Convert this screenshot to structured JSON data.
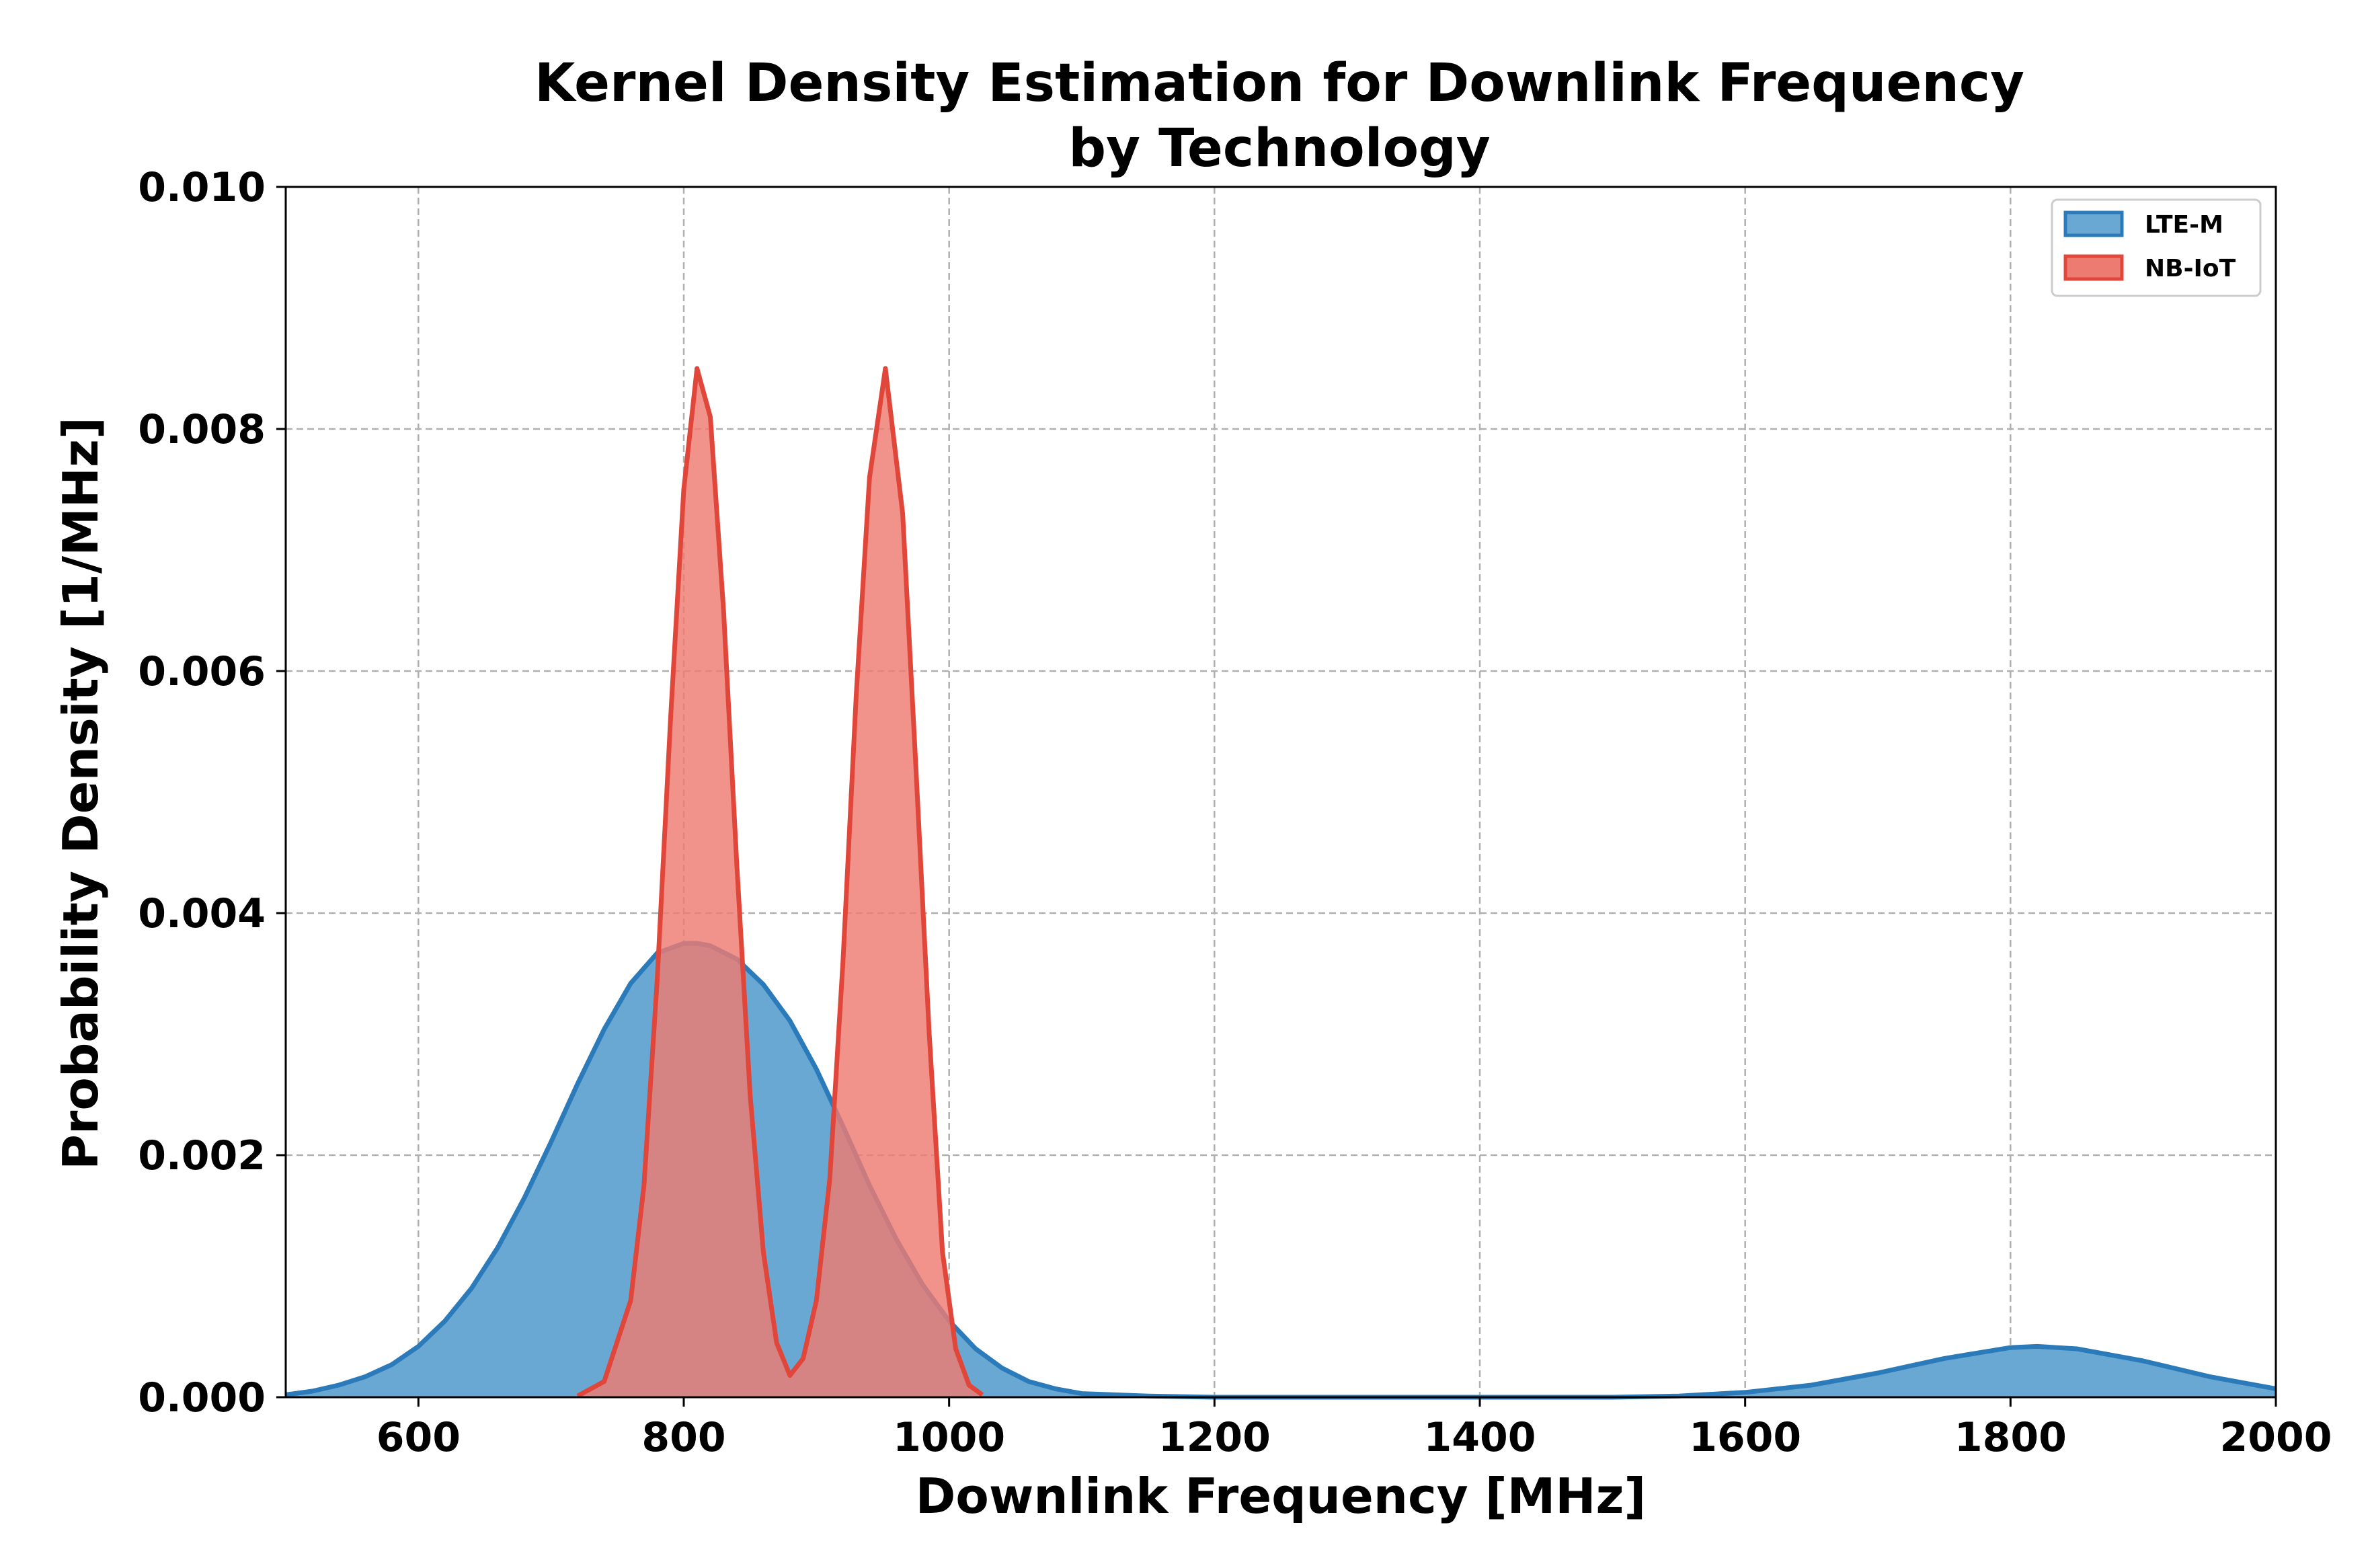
{
  "chart_data": {
    "type": "area",
    "title_line1": "Kernel Density Estimation for Downlink Frequency",
    "title_line2": "by Technology",
    "xlabel": "Downlink Frequency [MHz]",
    "ylabel": "Probability Density [1/MHz]",
    "xlim": [
      500,
      2000
    ],
    "ylim": [
      0,
      0.01
    ],
    "xticks": [
      600,
      800,
      1000,
      1200,
      1400,
      1600,
      1800,
      2000
    ],
    "xtick_labels": [
      "600",
      "800",
      "1000",
      "1200",
      "1400",
      "1600",
      "1800",
      "2000"
    ],
    "yticks": [
      0,
      0.002,
      0.004,
      0.006,
      0.008,
      0.01
    ],
    "ytick_labels": [
      "0.000",
      "0.002",
      "0.004",
      "0.006",
      "0.008",
      "0.010"
    ],
    "grid": true,
    "legend_position": "top-right",
    "series": [
      {
        "name": "LTE-M",
        "fill_color": "#6aa8d4",
        "line_color": "#2b7bba",
        "x": [
          500,
          520,
          540,
          560,
          580,
          600,
          620,
          640,
          660,
          680,
          700,
          720,
          740,
          760,
          780,
          800,
          810,
          820,
          840,
          860,
          880,
          900,
          920,
          940,
          960,
          980,
          1000,
          1020,
          1040,
          1060,
          1080,
          1100,
          1150,
          1200,
          1300,
          1400,
          1500,
          1550,
          1600,
          1650,
          1700,
          1750,
          1800,
          1820,
          1850,
          1900,
          1950,
          2000
        ],
        "y": [
          2e-05,
          5e-05,
          0.0001,
          0.00017,
          0.00027,
          0.00042,
          0.00063,
          0.0009,
          0.00124,
          0.00165,
          0.00211,
          0.00259,
          0.00304,
          0.00342,
          0.00367,
          0.00375,
          0.00375,
          0.00373,
          0.00362,
          0.00341,
          0.00311,
          0.00271,
          0.00224,
          0.00175,
          0.00131,
          0.00093,
          0.00063,
          0.0004,
          0.00024,
          0.00013,
          7e-05,
          3e-05,
          1e-05,
          0.0,
          0.0,
          0.0,
          0.0,
          1e-05,
          4e-05,
          0.0001,
          0.0002,
          0.00032,
          0.00041,
          0.00042,
          0.0004,
          0.0003,
          0.00017,
          7e-05
        ]
      },
      {
        "name": "NB-IoT",
        "fill_color": "#ee7b72",
        "line_color": "#e0463a",
        "x": [
          720,
          740,
          760,
          770,
          780,
          790,
          800,
          810,
          820,
          830,
          840,
          850,
          860,
          870,
          880,
          890,
          900,
          910,
          920,
          930,
          940,
          952,
          965,
          975,
          985,
          995,
          1005,
          1015,
          1025
        ],
        "y": [
          1e-05,
          0.00013,
          0.0008,
          0.00175,
          0.00345,
          0.0056,
          0.0075,
          0.0085,
          0.0081,
          0.0065,
          0.0044,
          0.0025,
          0.0012,
          0.00045,
          0.00018,
          0.00032,
          0.0008,
          0.0018,
          0.0036,
          0.0058,
          0.0076,
          0.0085,
          0.0073,
          0.0052,
          0.003,
          0.0012,
          0.0004,
          0.0001,
          2e-05
        ]
      }
    ]
  }
}
